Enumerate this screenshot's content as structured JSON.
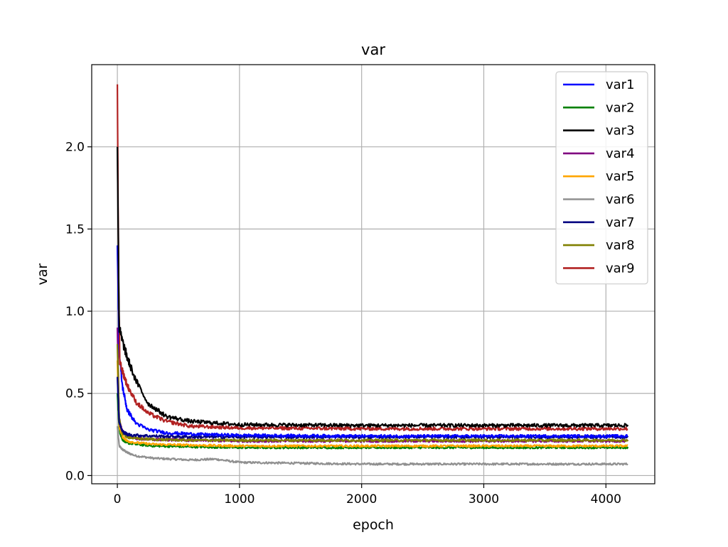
{
  "chart_data": {
    "type": "line",
    "title": "var",
    "xlabel": "epoch",
    "ylabel": "var",
    "xlim": [
      -210,
      4400
    ],
    "ylim": [
      -0.05,
      2.5
    ],
    "xticks": [
      0,
      1000,
      2000,
      3000,
      4000
    ],
    "yticks": [
      0.0,
      0.5,
      1.0,
      1.5,
      2.0
    ],
    "xtick_labels": [
      "0",
      "1000",
      "2000",
      "3000",
      "4000"
    ],
    "ytick_labels": [
      "0.0",
      "0.5",
      "1.0",
      "1.5",
      "2.0"
    ],
    "grid": true,
    "legend_position": "top-right",
    "x_range": [
      0,
      4180
    ],
    "series": [
      {
        "name": "var1",
        "color": "#0000ff",
        "points": [
          [
            0,
            1.4
          ],
          [
            15,
            0.75
          ],
          [
            40,
            0.55
          ],
          [
            80,
            0.4
          ],
          [
            150,
            0.32
          ],
          [
            250,
            0.28
          ],
          [
            400,
            0.26
          ],
          [
            700,
            0.25
          ],
          [
            1000,
            0.245
          ],
          [
            2000,
            0.24
          ],
          [
            3000,
            0.24
          ],
          [
            4180,
            0.24
          ]
        ]
      },
      {
        "name": "var2",
        "color": "#008000",
        "points": [
          [
            0,
            0.5
          ],
          [
            15,
            0.28
          ],
          [
            40,
            0.22
          ],
          [
            80,
            0.2
          ],
          [
            150,
            0.19
          ],
          [
            300,
            0.18
          ],
          [
            600,
            0.175
          ],
          [
            1000,
            0.17
          ],
          [
            2000,
            0.17
          ],
          [
            3000,
            0.17
          ],
          [
            4180,
            0.17
          ]
        ]
      },
      {
        "name": "var3",
        "color": "#000000",
        "points": [
          [
            0,
            2.0
          ],
          [
            15,
            0.9
          ],
          [
            40,
            0.82
          ],
          [
            80,
            0.72
          ],
          [
            150,
            0.58
          ],
          [
            250,
            0.44
          ],
          [
            400,
            0.36
          ],
          [
            600,
            0.33
          ],
          [
            800,
            0.32
          ],
          [
            1000,
            0.31
          ],
          [
            2000,
            0.305
          ],
          [
            3000,
            0.305
          ],
          [
            4180,
            0.305
          ]
        ]
      },
      {
        "name": "var4",
        "color": "#800080",
        "points": [
          [
            0,
            0.9
          ],
          [
            15,
            0.35
          ],
          [
            40,
            0.27
          ],
          [
            80,
            0.24
          ],
          [
            150,
            0.225
          ],
          [
            300,
            0.22
          ],
          [
            600,
            0.215
          ],
          [
            1000,
            0.21
          ],
          [
            2000,
            0.21
          ],
          [
            3000,
            0.21
          ],
          [
            4180,
            0.21
          ]
        ]
      },
      {
        "name": "var5",
        "color": "#ffa500",
        "points": [
          [
            0,
            0.7
          ],
          [
            15,
            0.3
          ],
          [
            40,
            0.24
          ],
          [
            80,
            0.21
          ],
          [
            150,
            0.2
          ],
          [
            300,
            0.19
          ],
          [
            600,
            0.185
          ],
          [
            1000,
            0.18
          ],
          [
            2000,
            0.18
          ],
          [
            3000,
            0.18
          ],
          [
            4180,
            0.18
          ]
        ]
      },
      {
        "name": "var6",
        "color": "#909090",
        "points": [
          [
            0,
            0.3
          ],
          [
            15,
            0.18
          ],
          [
            40,
            0.16
          ],
          [
            80,
            0.14
          ],
          [
            150,
            0.12
          ],
          [
            300,
            0.105
          ],
          [
            600,
            0.095
          ],
          [
            800,
            0.1
          ],
          [
            1000,
            0.08
          ],
          [
            2000,
            0.07
          ],
          [
            3000,
            0.07
          ],
          [
            4180,
            0.07
          ]
        ]
      },
      {
        "name": "var7",
        "color": "#000080",
        "points": [
          [
            0,
            0.6
          ],
          [
            15,
            0.32
          ],
          [
            40,
            0.27
          ],
          [
            80,
            0.25
          ],
          [
            150,
            0.245
          ],
          [
            300,
            0.24
          ],
          [
            600,
            0.235
          ],
          [
            1000,
            0.235
          ],
          [
            2000,
            0.235
          ],
          [
            3000,
            0.235
          ],
          [
            4180,
            0.235
          ]
        ]
      },
      {
        "name": "var8",
        "color": "#808000",
        "points": [
          [
            0,
            0.8
          ],
          [
            15,
            0.35
          ],
          [
            40,
            0.26
          ],
          [
            80,
            0.235
          ],
          [
            150,
            0.225
          ],
          [
            300,
            0.22
          ],
          [
            600,
            0.215
          ],
          [
            1000,
            0.215
          ],
          [
            2000,
            0.215
          ],
          [
            3000,
            0.215
          ],
          [
            4180,
            0.215
          ]
        ]
      },
      {
        "name": "var9",
        "color": "#b22222",
        "points": [
          [
            0,
            2.38
          ],
          [
            10,
            1.2
          ],
          [
            20,
            0.7
          ],
          [
            40,
            0.64
          ],
          [
            80,
            0.55
          ],
          [
            150,
            0.45
          ],
          [
            250,
            0.38
          ],
          [
            400,
            0.33
          ],
          [
            600,
            0.3
          ],
          [
            800,
            0.295
          ],
          [
            1000,
            0.29
          ],
          [
            2000,
            0.285
          ],
          [
            3000,
            0.285
          ],
          [
            4180,
            0.285
          ]
        ]
      }
    ]
  }
}
